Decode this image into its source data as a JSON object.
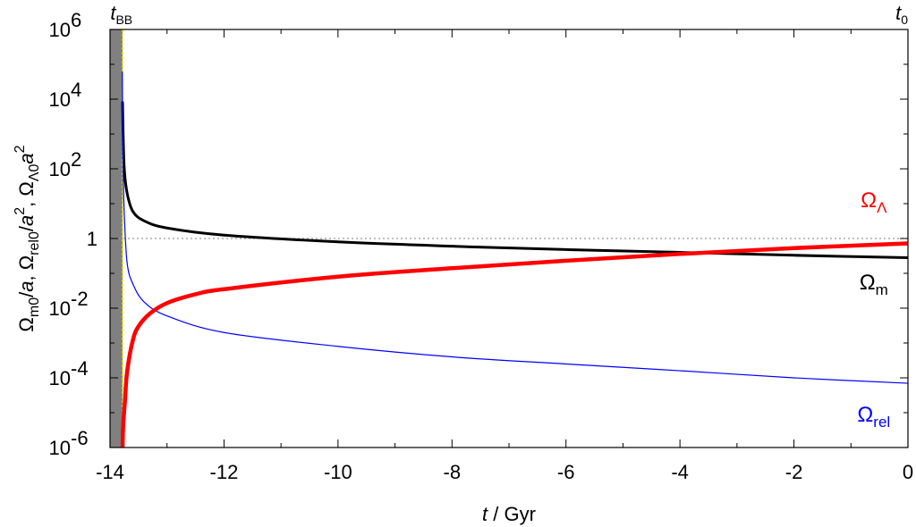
{
  "chart_data": {
    "type": "line",
    "xlabel": {
      "var": "t",
      "unit": " / Gyr"
    },
    "ylabel": {
      "parts": [
        [
          "Ω",
          "normal",
          ""
        ],
        [
          "m0",
          "sub",
          ""
        ],
        [
          "/",
          "normal",
          ""
        ],
        [
          "a",
          "normal",
          "italic"
        ],
        [
          ", Ω",
          "normal",
          ""
        ],
        [
          "rel0",
          "sub",
          ""
        ],
        [
          "/",
          "normal",
          ""
        ],
        [
          "a",
          "normal",
          "italic"
        ],
        [
          "2",
          "sup",
          ""
        ],
        [
          ", Ω",
          "normal",
          ""
        ],
        [
          "Λ0",
          "sub",
          ""
        ],
        [
          "a",
          "normal",
          "italic"
        ],
        [
          "2",
          "sup",
          ""
        ]
      ]
    },
    "xlim": [
      -14,
      0
    ],
    "ylim_log10": [
      -6,
      6
    ],
    "y_scale": "log",
    "x_ticks": [
      {
        "value": -14,
        "label": "-14"
      },
      {
        "value": -12,
        "label": "-12"
      },
      {
        "value": -10,
        "label": "-10"
      },
      {
        "value": -8,
        "label": "-8"
      },
      {
        "value": -6,
        "label": "-6"
      },
      {
        "value": -4,
        "label": "-4"
      },
      {
        "value": -2,
        "label": "-2"
      },
      {
        "value": 0,
        "label": "0"
      }
    ],
    "y_ticks": [
      {
        "exp": -6,
        "base": "10",
        "sup": "-6"
      },
      {
        "exp": -4,
        "base": "10",
        "sup": "-4"
      },
      {
        "exp": -2,
        "base": "10",
        "sup": "-2"
      },
      {
        "exp": 0,
        "base": "1",
        "sup": ""
      },
      {
        "exp": 2,
        "base": "10",
        "sup": "2"
      },
      {
        "exp": 4,
        "base": "10",
        "sup": "4"
      },
      {
        "exp": 6,
        "base": "10",
        "sup": "6"
      }
    ],
    "top_labels": [
      {
        "x": -13.8,
        "main": "t",
        "sub": "BB"
      },
      {
        "x": 0,
        "main": "t",
        "sub": "0"
      }
    ],
    "shaded_region": {
      "x": [
        -14,
        -13.78
      ],
      "color": "#808080"
    },
    "reference_lines": [
      {
        "orientation": "vertical",
        "x": -13.78,
        "color": "#e6e600",
        "style": "dashed"
      },
      {
        "orientation": "horizontal",
        "y": 1,
        "color": "#999999",
        "style": "dotted"
      }
    ],
    "series": [
      {
        "key": "matter",
        "name": "Ω",
        "name_sub": "m",
        "color": "#000000",
        "points": [
          [
            -13.78,
            8000
          ],
          [
            -13.77,
            1000
          ],
          [
            -13.75,
            100
          ],
          [
            -13.7,
            20
          ],
          [
            -13.6,
            6.0
          ],
          [
            -13.4,
            3.2
          ],
          [
            -13,
            2.0
          ],
          [
            -12,
            1.25
          ],
          [
            -10,
            0.8
          ],
          [
            -8,
            0.6
          ],
          [
            -6,
            0.48
          ],
          [
            -4,
            0.4
          ],
          [
            -2,
            0.33
          ],
          [
            0,
            0.28
          ]
        ]
      },
      {
        "key": "relativistic",
        "name": "Ω",
        "name_sub": "rel",
        "color": "#0000ff",
        "points": [
          [
            -13.785,
            60000
          ],
          [
            -13.78,
            5000
          ],
          [
            -13.77,
            100
          ],
          [
            -13.75,
            5
          ],
          [
            -13.7,
            0.2
          ],
          [
            -13.6,
            0.05
          ],
          [
            -13.4,
            0.015
          ],
          [
            -13,
            0.006
          ],
          [
            -12,
            0.002
          ],
          [
            -10,
            0.0008
          ],
          [
            -8,
            0.0004
          ],
          [
            -6,
            0.00025
          ],
          [
            -4,
            0.00016
          ],
          [
            -2,
            0.0001
          ],
          [
            0,
            7e-05
          ]
        ]
      },
      {
        "key": "lambda",
        "name": "Ω",
        "name_sub": "Λ",
        "color": "#ff0000",
        "points": [
          [
            -13.78,
            1e-06
          ],
          [
            -13.77,
            4e-06
          ],
          [
            -13.74,
            2e-05
          ],
          [
            -13.7,
            0.00015
          ],
          [
            -13.6,
            0.0012
          ],
          [
            -13.5,
            0.003
          ],
          [
            -13.3,
            0.007
          ],
          [
            -13,
            0.014
          ],
          [
            -12.5,
            0.025
          ],
          [
            -12,
            0.035
          ],
          [
            -10,
            0.08
          ],
          [
            -8,
            0.14
          ],
          [
            -6,
            0.23
          ],
          [
            -4,
            0.36
          ],
          [
            -2,
            0.53
          ],
          [
            0,
            0.72
          ]
        ]
      }
    ],
    "curve_labels": [
      {
        "series": "lambda",
        "x": -0.6,
        "y_log10": 1.1
      },
      {
        "series": "matter",
        "x": -0.6,
        "y_log10": -1.25
      },
      {
        "series": "relativistic",
        "x": -0.6,
        "y_log10": -5.05
      }
    ],
    "grid": false,
    "legend": "none"
  }
}
